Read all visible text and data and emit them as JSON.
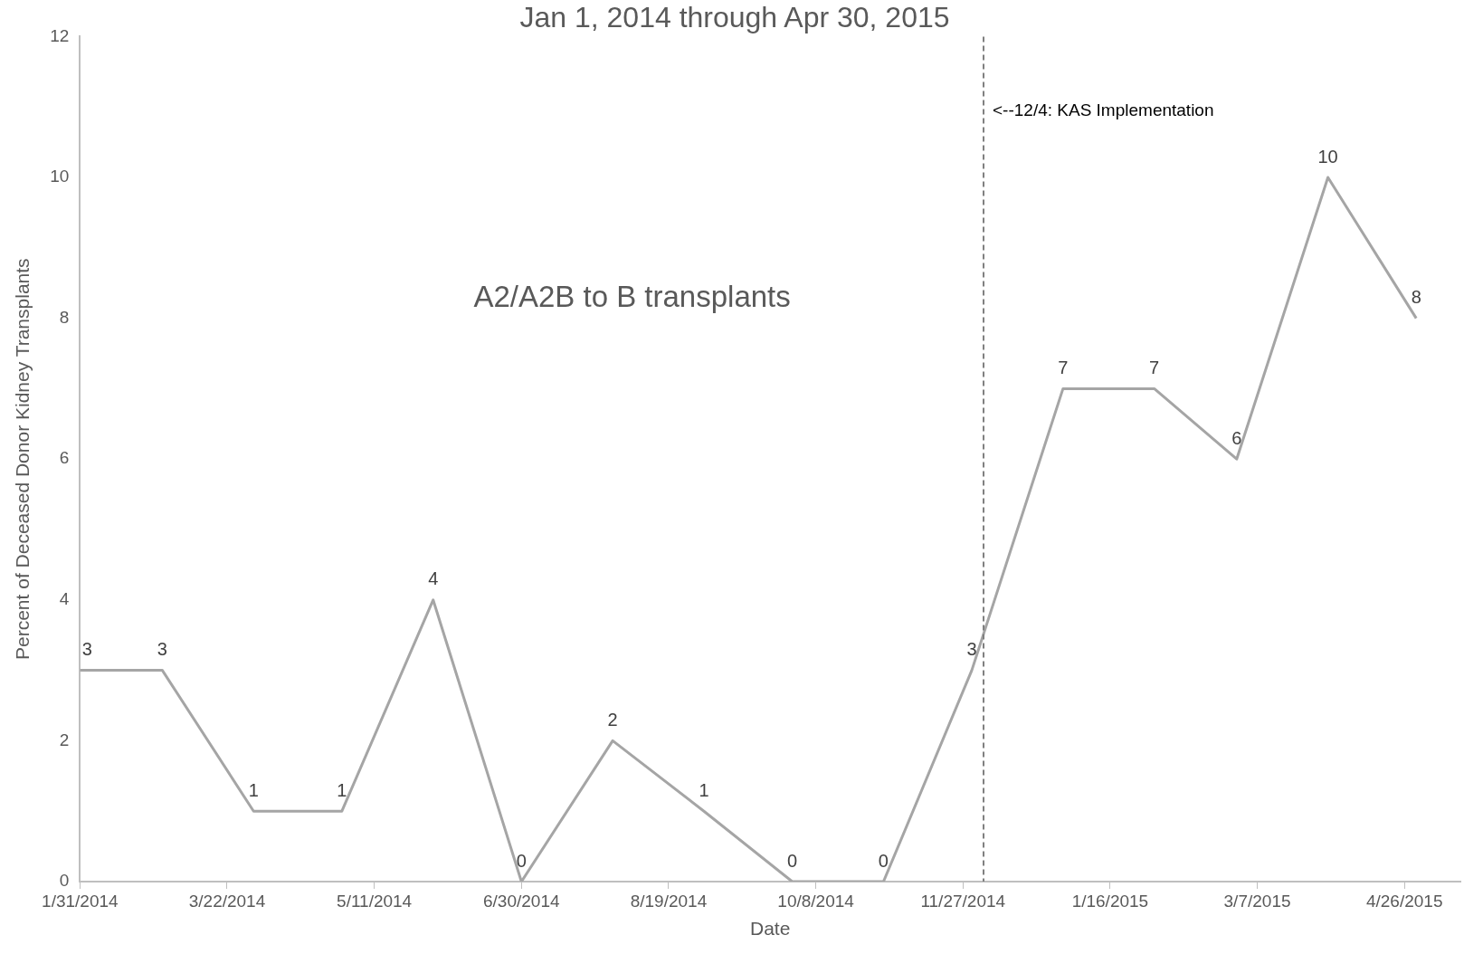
{
  "chart_data": {
    "type": "line",
    "title": "Jan 1, 2014 through Apr 30, 2015",
    "xlabel": "Date",
    "ylabel": "Percent of Deceased Donor Kidney Transplants",
    "annotations": [
      "A2/A2B to B transplants"
    ],
    "x": [
      "2014-01-31",
      "2014-02-28",
      "2014-03-31",
      "2014-04-30",
      "2014-05-31",
      "2014-06-30",
      "2014-07-31",
      "2014-08-31",
      "2014-09-30",
      "2014-10-31",
      "2014-11-30",
      "2014-12-31",
      "2015-01-31",
      "2015-02-28",
      "2015-03-31",
      "2015-04-30"
    ],
    "series": [
      {
        "color": "#a5a5a5",
        "values": [
          3,
          3,
          1,
          1,
          4,
          0,
          2,
          1,
          0,
          0,
          3,
          7,
          7,
          6,
          10,
          8
        ]
      }
    ],
    "xlim": [
      "2014-01-31",
      "2015-05-15"
    ],
    "xticks": [
      {
        "value": "2014-01-31",
        "label": "1/31/2014"
      },
      {
        "value": "2014-03-22",
        "label": "3/22/2014"
      },
      {
        "value": "2014-05-11",
        "label": "5/11/2014"
      },
      {
        "value": "2014-06-30",
        "label": "6/30/2014"
      },
      {
        "value": "2014-08-19",
        "label": "8/19/2014"
      },
      {
        "value": "2014-10-08",
        "label": "10/8/2014"
      },
      {
        "value": "2014-11-27",
        "label": "11/27/2014"
      },
      {
        "value": "2015-01-16",
        "label": "1/16/2015"
      },
      {
        "value": "2015-03-07",
        "label": "3/7/2015"
      },
      {
        "value": "2015-04-26",
        "label": "4/26/2015"
      }
    ],
    "ylim": [
      0,
      12
    ],
    "yticks": [
      0,
      2,
      4,
      6,
      8,
      10,
      12
    ],
    "ref_lines": [
      {
        "axis": "x",
        "value": "2014-12-04",
        "label": "<--12/4: KAS Implementation",
        "color": "#808080",
        "line_style": "dashed"
      }
    ],
    "data_labels": true,
    "grid": false,
    "legend": false,
    "marker": "none",
    "line_style": "solid"
  }
}
